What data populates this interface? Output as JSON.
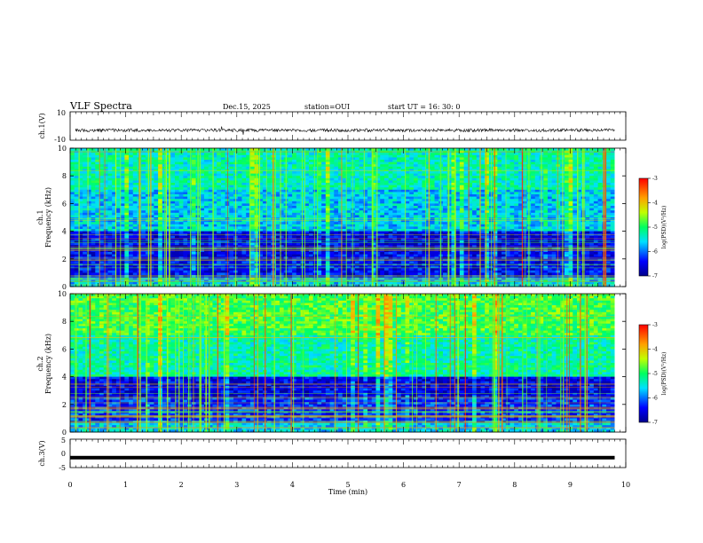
{
  "header": {
    "title": "VLF Spectra",
    "date": "Dec.15, 2025",
    "station": "station=OUI",
    "start_ut": "start  UT  =   16: 30: 0"
  },
  "chart_data": [
    {
      "type": "line",
      "name": "ch1-waveform",
      "ylabel": "ch.1(V)",
      "ylim": [
        -10,
        10
      ],
      "yticks": [
        "10",
        "-10"
      ],
      "baseline": -3,
      "xlim": [
        0,
        10
      ]
    },
    {
      "type": "heatmap",
      "name": "ch1-spectrogram",
      "ylabel": "ch.1\nFrequency  (kHz)",
      "ylim": [
        0,
        10
      ],
      "yticks": [
        "0",
        "2",
        "4",
        "6",
        "8",
        "10"
      ],
      "xlim": [
        0,
        10
      ],
      "data_end_min": 9.8,
      "colorbar": {
        "label": "log(PSD)(V²/Hz)",
        "range": [
          -7,
          -3
        ],
        "ticks": [
          "-3",
          "-4",
          "-5",
          "-6",
          "-7"
        ]
      }
    },
    {
      "type": "heatmap",
      "name": "ch2-spectrogram",
      "ylabel": "ch.2\nFrequency  (kHz)",
      "ylim": [
        0,
        10
      ],
      "yticks": [
        "0",
        "2",
        "4",
        "6",
        "8",
        "10"
      ],
      "xlim": [
        0,
        10
      ],
      "data_end_min": 9.8,
      "colorbar": {
        "label": "log(PSD)(V²/Hz)",
        "range": [
          -7,
          -3
        ],
        "ticks": [
          "-3",
          "-4",
          "-5",
          "-6",
          "-7"
        ]
      }
    },
    {
      "type": "line",
      "name": "ch3-waveform",
      "ylabel": "ch.3(V)",
      "ylim": [
        -5,
        5
      ],
      "yticks": [
        "5",
        "0",
        "-5"
      ],
      "baseline": -1.5,
      "xlim": [
        0,
        10
      ]
    }
  ],
  "xaxis": {
    "label": "Time  (min)",
    "ticks": [
      "0",
      "1",
      "2",
      "3",
      "4",
      "5",
      "6",
      "7",
      "8",
      "9",
      "10"
    ]
  }
}
